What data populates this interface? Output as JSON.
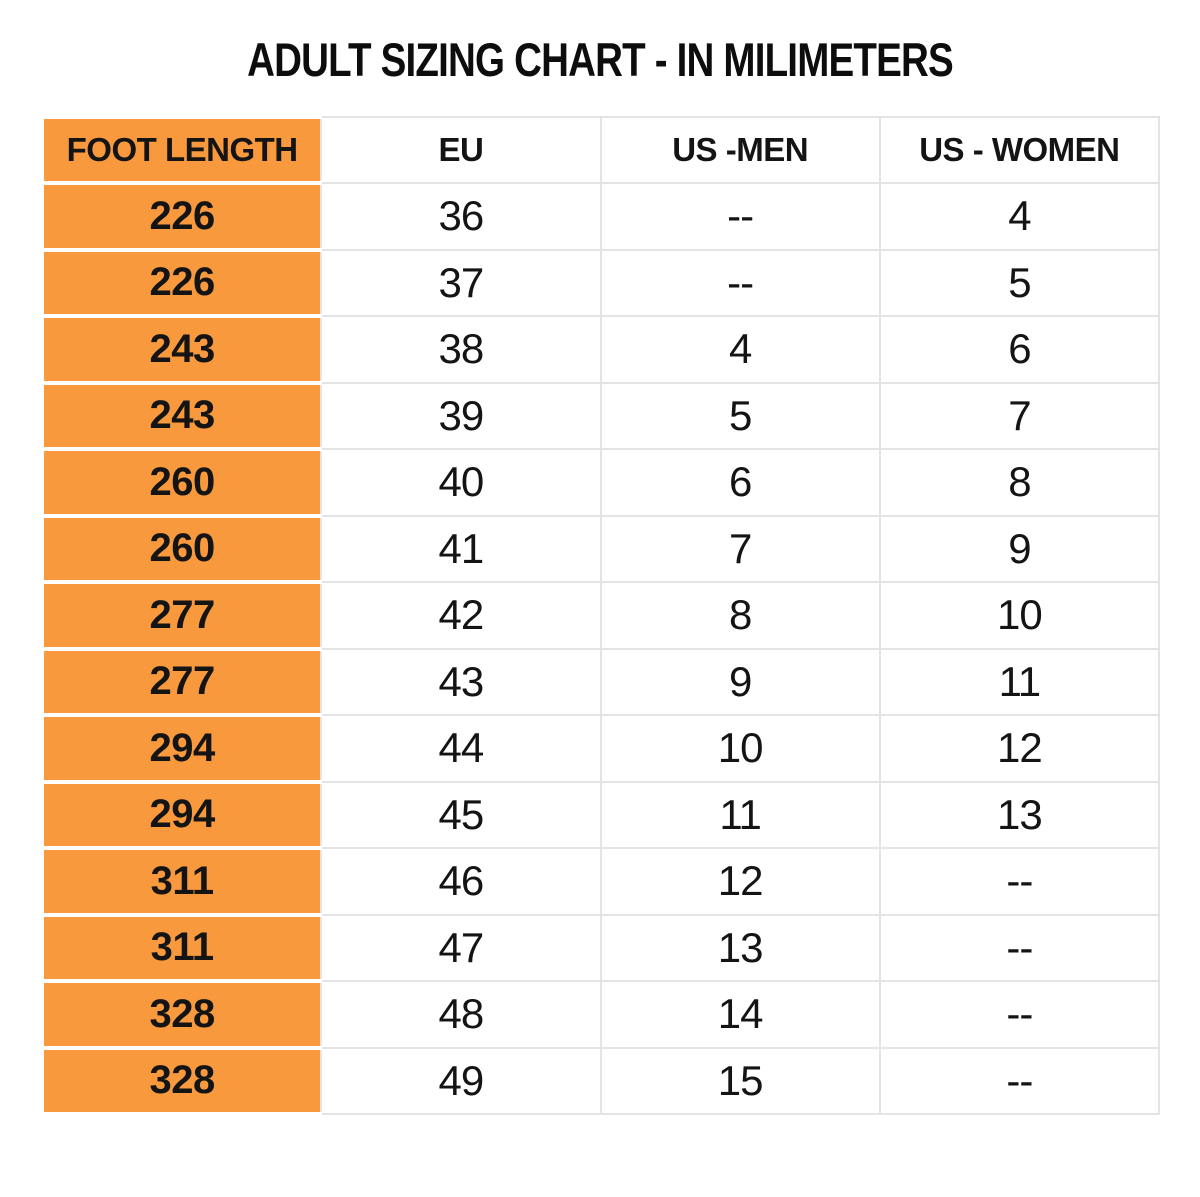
{
  "page": {
    "background": "#FFFFFF"
  },
  "colors": {
    "foot_length_column_fill": "#F8993E",
    "grid_line": "#E4E4E4",
    "text": "#141414"
  },
  "chart_data": {
    "type": "table",
    "title": "ADULT SIZING CHART - IN MILIMETERS",
    "columns": [
      "FOOT LENGTH",
      "EU",
      "US -MEN",
      "US - WOMEN"
    ],
    "rows": [
      [
        "226",
        "36",
        "--",
        "4"
      ],
      [
        "226",
        "37",
        "--",
        "5"
      ],
      [
        "243",
        "38",
        "4",
        "6"
      ],
      [
        "243",
        "39",
        "5",
        "7"
      ],
      [
        "260",
        "40",
        "6",
        "8"
      ],
      [
        "260",
        "41",
        "7",
        "9"
      ],
      [
        "277",
        "42",
        "8",
        "10"
      ],
      [
        "277",
        "43",
        "9",
        "11"
      ],
      [
        "294",
        "44",
        "10",
        "12"
      ],
      [
        "294",
        "45",
        "11",
        "13"
      ],
      [
        "311",
        "46",
        "12",
        "--"
      ],
      [
        "311",
        "47",
        "13",
        "--"
      ],
      [
        "328",
        "48",
        "14",
        "--"
      ],
      [
        "328",
        "49",
        "15",
        "--"
      ]
    ],
    "layout": {
      "first_column_highlight": true,
      "grid": true,
      "header_position": "top"
    }
  }
}
